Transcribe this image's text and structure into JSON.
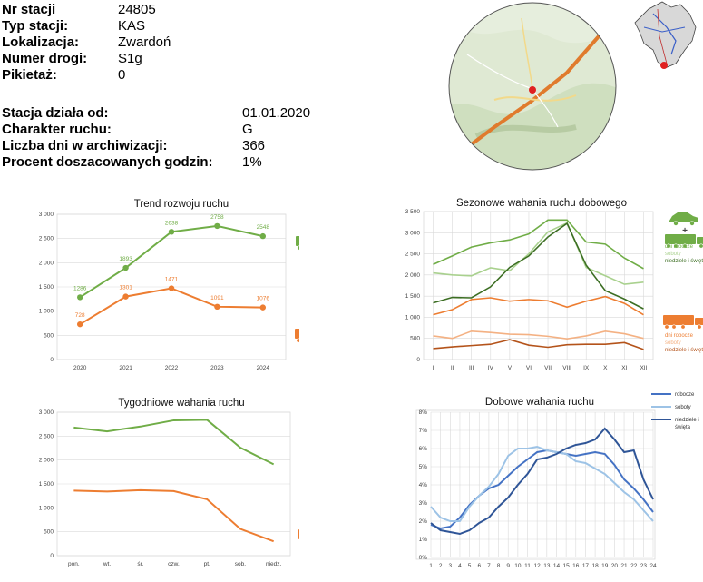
{
  "station": {
    "fields": [
      {
        "label": "Nr stacji",
        "value": "24805"
      },
      {
        "label": "Typ stacji:",
        "value": "KAS"
      },
      {
        "label": "Lokalizacja:",
        "value": "Zwardoń"
      },
      {
        "label": "Numer drogi:",
        "value": "S1g"
      },
      {
        "label": "Pikietaż:",
        "value": "0"
      }
    ],
    "fields2": [
      {
        "label": "Stacja działa od:",
        "value": "01.01.2020"
      },
      {
        "label": "Charakter ruchu:",
        "value": "G"
      },
      {
        "label": "Liczba dni w archiwizacji:",
        "value": "366"
      },
      {
        "label": "Procent doszacowanych godzin:",
        "value": "1%"
      }
    ]
  },
  "colors": {
    "green": "#70ad47",
    "orange": "#ed7d31",
    "darkgreen": "#3c6e23",
    "lightgreen": "#a9d18e",
    "darkorange": "#b4531a",
    "lightorange": "#f4b183",
    "blue": "#4472c4",
    "lightblue": "#9dc3e6",
    "darkblue": "#2f5597",
    "grid": "#d9d9d9"
  },
  "chart_data": [
    {
      "type": "line",
      "title": "Trend rozwoju ruchu",
      "categories": [
        "2020",
        "2021",
        "2022",
        "2023",
        "2024"
      ],
      "series": [
        {
          "values": [
            1286,
            1893,
            2638,
            2758,
            2548
          ]
        },
        {
          "values": [
            728,
            1301,
            1471,
            1091,
            1076
          ]
        }
      ],
      "ylim": [
        0,
        3000
      ],
      "yticks": [
        "0",
        "500",
        "1 000",
        "1 500",
        "2 000",
        "2 500",
        "3 000"
      ],
      "data_labels": true
    },
    {
      "type": "line",
      "title": "Sezonowe wahania ruchu dobowego",
      "categories": [
        "I",
        "II",
        "III",
        "IV",
        "V",
        "VI",
        "VII",
        "VIII",
        "IX",
        "X",
        "XI",
        "XII"
      ],
      "series": [
        {
          "values": [
            2250,
            2450,
            2660,
            2760,
            2830,
            2970,
            3300,
            3300,
            2780,
            2730,
            2400,
            2150
          ]
        },
        {
          "values": [
            2050,
            2000,
            1980,
            2170,
            2100,
            2500,
            3020,
            3230,
            2180,
            1980,
            1780,
            1830
          ]
        },
        {
          "values": [
            1340,
            1470,
            1460,
            1720,
            2180,
            2450,
            2900,
            3220,
            2230,
            1630,
            1430,
            1200
          ]
        },
        {
          "values": [
            1060,
            1180,
            1420,
            1460,
            1380,
            1420,
            1390,
            1240,
            1380,
            1490,
            1330,
            1060
          ]
        },
        {
          "values": [
            560,
            500,
            670,
            640,
            600,
            590,
            550,
            490,
            560,
            670,
            610,
            500
          ]
        },
        {
          "values": [
            260,
            300,
            330,
            360,
            470,
            340,
            290,
            350,
            360,
            360,
            400,
            240
          ]
        }
      ],
      "ylim": [
        0,
        3500
      ],
      "yticks": [
        "0",
        "500",
        "1 000",
        "1 500",
        "2 000",
        "2 500",
        "3 000",
        "3 500"
      ],
      "legend_green": [
        "dni robocze",
        "soboty",
        "niedziele i święta"
      ],
      "legend_orange": [
        "dni robocze",
        "soboty",
        "niedziele i święta"
      ]
    },
    {
      "type": "line",
      "title": "Tygodniowe wahania ruchu",
      "categories": [
        "pon.",
        "wt.",
        "śr.",
        "czw.",
        "pt.",
        "sob.",
        "niedz."
      ],
      "series": [
        {
          "values": [
            2680,
            2600,
            2700,
            2830,
            2840,
            2260,
            1910
          ]
        },
        {
          "values": [
            1360,
            1340,
            1370,
            1350,
            1180,
            560,
            300
          ]
        }
      ],
      "ylim": [
        0,
        3000
      ],
      "yticks": [
        "0",
        "500",
        "1 000",
        "1 500",
        "2 000",
        "2 500",
        "3 000"
      ]
    },
    {
      "type": "line",
      "title": "Dobowe wahania ruchu",
      "categories": [
        "1",
        "2",
        "3",
        "4",
        "5",
        "6",
        "7",
        "8",
        "9",
        "10",
        "11",
        "12",
        "13",
        "14",
        "15",
        "16",
        "17",
        "18",
        "19",
        "20",
        "21",
        "22",
        "23",
        "24"
      ],
      "series": [
        {
          "name": "robocze",
          "values": [
            1.8,
            1.6,
            1.7,
            2.2,
            2.9,
            3.4,
            3.8,
            4.0,
            4.5,
            5.0,
            5.4,
            5.8,
            5.9,
            5.8,
            5.7,
            5.6,
            5.7,
            5.8,
            5.7,
            5.1,
            4.3,
            3.8,
            3.2,
            2.5
          ]
        },
        {
          "name": "soboty",
          "values": [
            2.8,
            2.2,
            2.0,
            2.0,
            2.8,
            3.4,
            3.9,
            4.6,
            5.6,
            6.0,
            6.0,
            6.1,
            5.9,
            5.8,
            5.7,
            5.3,
            5.2,
            4.9,
            4.6,
            4.1,
            3.6,
            3.2,
            2.6,
            2.0
          ]
        },
        {
          "name": "niedziele i święta",
          "values": [
            1.9,
            1.5,
            1.4,
            1.3,
            1.5,
            1.9,
            2.2,
            2.8,
            3.3,
            4.0,
            4.6,
            5.4,
            5.5,
            5.7,
            6.0,
            6.2,
            6.3,
            6.5,
            7.1,
            6.5,
            5.8,
            5.9,
            4.3,
            3.2
          ]
        }
      ],
      "ylim": [
        0,
        8
      ],
      "yticks": [
        "0%",
        "1%",
        "2%",
        "3%",
        "4%",
        "5%",
        "6%",
        "7%",
        "8%"
      ]
    }
  ]
}
